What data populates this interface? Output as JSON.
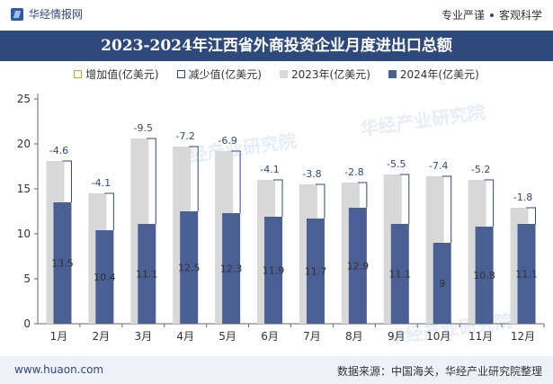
{
  "header": {
    "brand": "华经情报网",
    "slogan_left": "专业严谨",
    "slogan_right": "客观科学"
  },
  "watermark": "华经产业研究院",
  "chart_data": {
    "type": "bar",
    "title": "2023-2024年江西省外商投资企业月度进出口总额",
    "categories": [
      "1月",
      "2月",
      "3月",
      "4月",
      "5月",
      "6月",
      "7月",
      "8月",
      "9月",
      "10月",
      "11月",
      "12月"
    ],
    "series": [
      {
        "name": "2023年(亿美元)",
        "values": [
          18.1,
          14.5,
          20.6,
          19.7,
          19.2,
          16.0,
          15.5,
          15.7,
          16.6,
          16.4,
          16.0,
          12.9
        ],
        "color": "#d8d8d8"
      },
      {
        "name": "2024年(亿美元)",
        "values": [
          13.5,
          10.4,
          11.1,
          12.5,
          12.3,
          11.9,
          11.7,
          12.9,
          11.1,
          9,
          10.8,
          11.1
        ],
        "color": "#4a5f94"
      }
    ],
    "change": {
      "increase_name": "增加值(亿美元)",
      "decrease_name": "减少值(亿美元)",
      "values": [
        -4.6,
        -4.1,
        -9.5,
        -7.2,
        -6.9,
        -4.1,
        -3.8,
        -2.8,
        -5.5,
        -7.4,
        -5.2,
        -1.8
      ]
    },
    "ylim": [
      0,
      25
    ],
    "yticks": [
      0,
      5,
      10,
      15,
      20,
      25
    ],
    "grid": false,
    "legend": "top-center",
    "colors": {
      "increase": "#e0a020",
      "decrease": "#2e4a7c",
      "label_change": "#2e4a7c"
    }
  },
  "footer": {
    "website": "www.huaon.com",
    "source": "数据来源：中国海关，华经产业研究院整理"
  }
}
